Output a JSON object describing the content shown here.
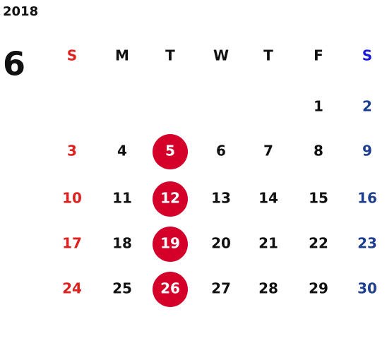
{
  "year": "2018",
  "month": "6",
  "weekdays": [
    "S",
    "M",
    "T",
    "W",
    "T",
    "F",
    "S"
  ],
  "weeks": [
    [
      null,
      null,
      null,
      null,
      null,
      "1",
      "2"
    ],
    [
      "3",
      "4",
      "5",
      "6",
      "7",
      "8",
      "9"
    ],
    [
      "10",
      "11",
      "12",
      "13",
      "14",
      "15",
      "16"
    ],
    [
      "17",
      "18",
      "19",
      "20",
      "21",
      "22",
      "23"
    ],
    [
      "24",
      "25",
      "26",
      "27",
      "28",
      "29",
      "30"
    ]
  ]
}
